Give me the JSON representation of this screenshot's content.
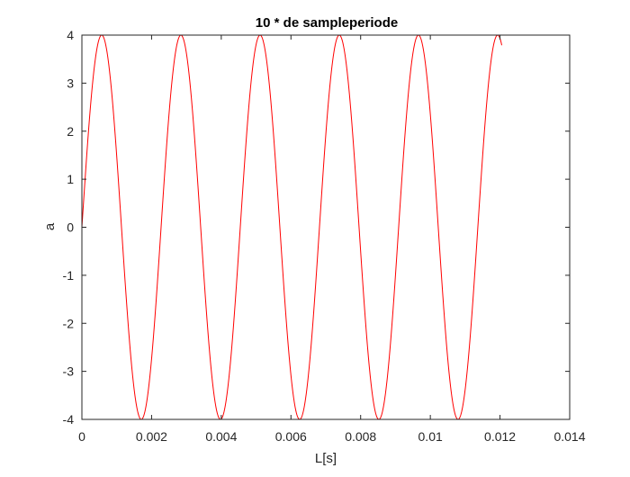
{
  "chart_data": {
    "type": "line",
    "title": "10 * de sampleperiode",
    "xlabel": "L[s]",
    "ylabel": "a",
    "xlim": [
      0,
      0.014
    ],
    "ylim": [
      -4,
      4
    ],
    "xticks": [
      0,
      0.002,
      0.004,
      0.006,
      0.008,
      0.01,
      0.012,
      0.014
    ],
    "xtick_labels": [
      "0",
      "0.002",
      "0.004",
      "0.006",
      "0.008",
      "0.01",
      "0.012",
      "0.014"
    ],
    "yticks": [
      -4,
      -3,
      -2,
      -1,
      0,
      1,
      2,
      3,
      4
    ],
    "ytick_labels": [
      "-4",
      "-3",
      "-2",
      "-1",
      "0",
      "1",
      "2",
      "3",
      "4"
    ],
    "grid": false,
    "box": true,
    "series": [
      {
        "color": "#ff0000",
        "function": "a = A * sin(2*pi*f*t)",
        "amplitude": 4,
        "frequency_hz": 440,
        "x_start": 0,
        "x_end": 0.01205
      }
    ]
  }
}
